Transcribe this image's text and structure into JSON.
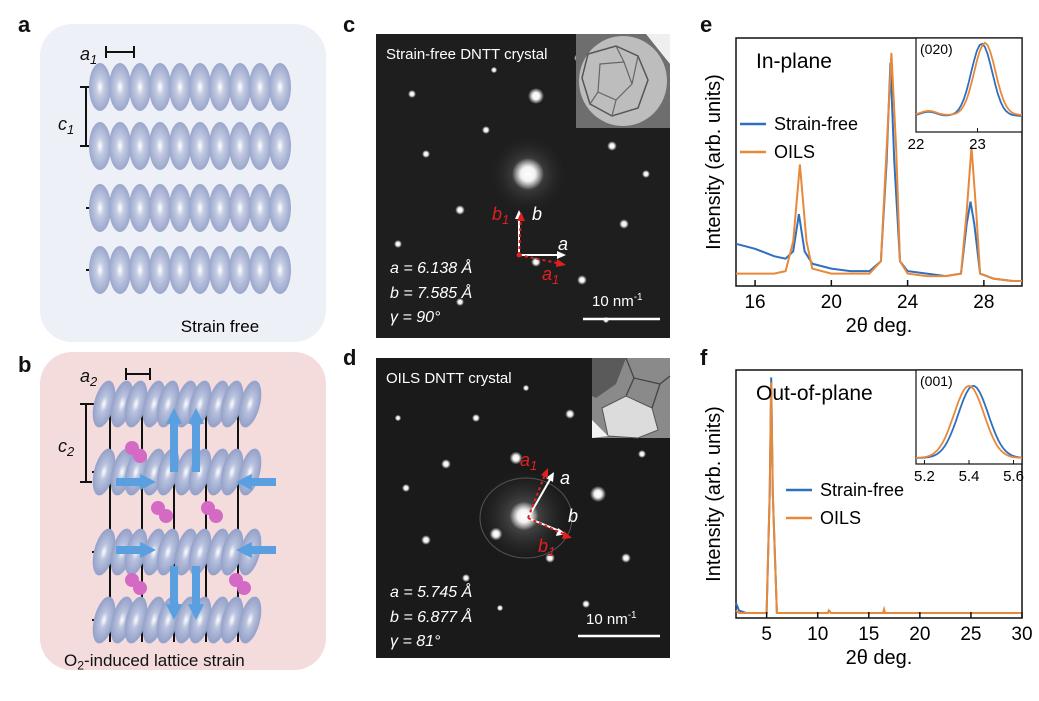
{
  "panels": {
    "a": {
      "label": "a",
      "caption": "Strain free",
      "lattice_a": "a",
      "lattice_a_sub": "1",
      "lattice_c": "c",
      "lattice_c_sub": "1",
      "bg_color": "#eef0f8"
    },
    "b": {
      "label": "b",
      "caption_main": "O",
      "caption_sub": "2",
      "caption_rest": "-induced lattice strain",
      "lattice_a": "a",
      "lattice_a_sub": "2",
      "lattice_c": "c",
      "lattice_c_sub": "2",
      "bg_color": "#f4dcdc"
    },
    "c": {
      "label": "c",
      "title": "Strain-free DNTT crystal",
      "param_a": "a = 6.138 Å",
      "param_b": "b = 7.585 Å",
      "param_g": "γ = 90°",
      "scale": "10 nm",
      "scale_exp": "-1",
      "vec_b_red": "b",
      "vec_b_red_sub": "1",
      "vec_b": "b",
      "vec_a": "a",
      "vec_a_red": "a",
      "vec_a_red_sub": "1"
    },
    "d": {
      "label": "d",
      "title": "OILS DNTT crystal",
      "param_a": "a = 5.745 Å",
      "param_b": "b = 6.877 Å",
      "param_g": "γ = 81°",
      "scale": "10 nm",
      "scale_exp": "-1",
      "vec_a_red": "a",
      "vec_a_red_sub": "1",
      "vec_a": "a",
      "vec_b": "b",
      "vec_b_red": "b",
      "vec_b_red_sub": "1"
    },
    "e": {
      "label": "e",
      "title": "In-plane",
      "inset_title": "(020)",
      "inset_ticks": [
        "22",
        "23"
      ]
    },
    "f": {
      "label": "f",
      "title": "Out-of-plane",
      "inset_title": "(001)",
      "inset_ticks": [
        "5.2",
        "5.4",
        "5.6"
      ]
    }
  },
  "chart_data": [
    {
      "type": "line",
      "panel": "e",
      "title": "In-plane",
      "xlabel": "2θ deg.",
      "ylabel": "Intensity (arb. units)",
      "xlim": [
        15,
        30
      ],
      "xticks": [
        16,
        20,
        24,
        28
      ],
      "ylim": [
        0,
        1
      ],
      "legend_position": "center-left",
      "series": [
        {
          "name": "Strain-free",
          "color": "#2f6fc0",
          "x": [
            15,
            16,
            17,
            17.6,
            18.0,
            18.3,
            18.6,
            19,
            20,
            21,
            22,
            22.6,
            22.9,
            23.1,
            23.3,
            23.6,
            24,
            25,
            26,
            26.8,
            27.1,
            27.3,
            27.5,
            27.8,
            28.5,
            29.5,
            30
          ],
          "y": [
            0.17,
            0.15,
            0.12,
            0.11,
            0.14,
            0.29,
            0.14,
            0.09,
            0.07,
            0.06,
            0.06,
            0.1,
            0.5,
            0.9,
            0.5,
            0.1,
            0.06,
            0.05,
            0.04,
            0.05,
            0.25,
            0.34,
            0.25,
            0.05,
            0.03,
            0.02,
            0.02
          ]
        },
        {
          "name": "OILS",
          "color": "#e8893a",
          "x": [
            15,
            16,
            17,
            17.6,
            18.0,
            18.35,
            18.7,
            19,
            20,
            21,
            22,
            22.6,
            22.9,
            23.15,
            23.4,
            23.6,
            24,
            25,
            26,
            26.8,
            27.1,
            27.35,
            27.6,
            27.8,
            28.5,
            29.5,
            30
          ],
          "y": [
            0.05,
            0.05,
            0.05,
            0.06,
            0.18,
            0.49,
            0.18,
            0.07,
            0.05,
            0.05,
            0.05,
            0.1,
            0.55,
            0.94,
            0.55,
            0.1,
            0.05,
            0.04,
            0.04,
            0.05,
            0.3,
            0.56,
            0.3,
            0.05,
            0.03,
            0.02,
            0.02
          ]
        }
      ]
    },
    {
      "type": "line",
      "panel": "f",
      "title": "Out-of-plane",
      "xlabel": "2θ deg.",
      "ylabel": "Intensity (arb. units)",
      "xlim": [
        2,
        30
      ],
      "xticks": [
        5,
        10,
        15,
        20,
        25,
        30
      ],
      "ylim": [
        0,
        1
      ],
      "legend_position": "center",
      "series": [
        {
          "name": "Strain-free",
          "color": "#2f6fc0",
          "x": [
            2,
            2.3,
            3,
            4,
            5,
            5.3,
            5.45,
            5.6,
            6,
            8,
            11,
            11.1,
            11.3,
            15,
            16.4,
            16.5,
            16.6,
            20,
            25,
            30
          ],
          "y": [
            0.06,
            0.03,
            0.02,
            0.02,
            0.02,
            0.5,
            0.97,
            0.5,
            0.02,
            0.02,
            0.02,
            0.03,
            0.02,
            0.02,
            0.02,
            0.03,
            0.02,
            0.02,
            0.02,
            0.02
          ]
        },
        {
          "name": "OILS",
          "color": "#e8893a",
          "x": [
            2,
            2.3,
            3,
            4,
            5,
            5.3,
            5.45,
            5.6,
            6,
            8,
            11,
            11.1,
            11.3,
            15,
            16.4,
            16.5,
            16.6,
            20,
            25,
            30
          ],
          "y": [
            0.03,
            0.02,
            0.02,
            0.02,
            0.02,
            0.5,
            0.95,
            0.5,
            0.02,
            0.02,
            0.02,
            0.03,
            0.02,
            0.02,
            0.02,
            0.035,
            0.02,
            0.02,
            0.02,
            0.02
          ]
        }
      ]
    }
  ]
}
